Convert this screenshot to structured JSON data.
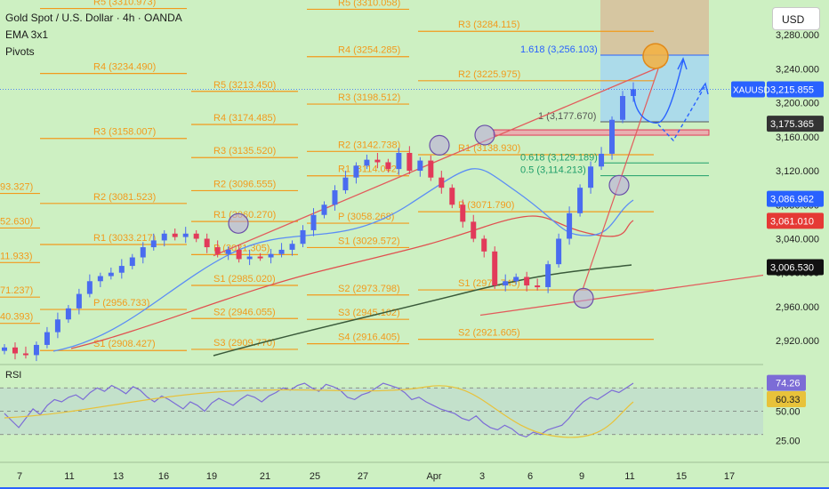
{
  "header": {
    "title": "Gold Spot / U.S. Dollar · 4h · OANDA",
    "indicator_ema": "EMA 3x1",
    "indicator_pivots": "Pivots",
    "rsi_label": "RSI",
    "currency_button": "USD"
  },
  "colors": {
    "background": "#cdf0c2",
    "pivot": "#f29a1c",
    "bull": "#4a6cf0",
    "bear": "#e23a5a",
    "ema_blue": "#5b8df5",
    "ma_red": "#e0504f",
    "ma_dark": "#3a5a3a",
    "rsi_line": "#7c6cd6",
    "rsi_ma": "#e8c23a",
    "trend": "#e25c5c"
  },
  "chart_data": [
    {
      "type": "candlestick",
      "symbol": "XAUUSD",
      "timeframe": "4h",
      "x_ticks": [
        "7",
        "11",
        "13",
        "16",
        "19",
        "21",
        "25",
        "27",
        "Apr",
        "3",
        "6",
        "9",
        "11",
        "15",
        "17"
      ],
      "y_ticks": [
        3280,
        3240,
        3200,
        3160,
        3120,
        3080,
        3040,
        3000,
        2960,
        2920
      ],
      "y_tick_labels": [
        "3,280.000",
        "3,240.000",
        "3,200.000",
        "3,160.000",
        "3,120.000",
        "3,080.000",
        "3,040.000",
        "3,000.000",
        "2,960.000",
        "2,920.000"
      ],
      "ylim": [
        2894,
        3321
      ],
      "close_path": [
        2912,
        2905,
        2903,
        2915,
        2930,
        2945,
        2958,
        2975,
        2990,
        2996,
        3000,
        3008,
        3018,
        3030,
        3038,
        3046,
        3042,
        3046,
        3040,
        3030,
        3022,
        3027,
        3016,
        3019,
        3018,
        3022,
        3027,
        3034,
        3050,
        3068,
        3080,
        3097,
        3112,
        3126,
        3133,
        3130,
        3122,
        3141,
        3120,
        3132,
        3112,
        3100,
        3080,
        3060,
        3040,
        3025,
        2985,
        2990,
        2995,
        2985,
        2983,
        3010,
        3040,
        3070,
        3100,
        3125,
        3140,
        3180,
        3208,
        3216
      ],
      "price_labels": [
        {
          "label": "XAUUSD",
          "value": "3,215.855",
          "y": 3215.855,
          "color": "#2962ff"
        },
        {
          "value": "3,175.365",
          "y": 3175.365,
          "color": "#333333"
        },
        {
          "value": "3,086.962",
          "y": 3086.962,
          "color": "#2962ff"
        },
        {
          "value": "3,061.010",
          "y": 3061.01,
          "color": "#e53935"
        },
        {
          "value": "3,006.530",
          "y": 3006.53,
          "color": "#111111"
        }
      ],
      "pivot_labels": [
        {
          "text": "R5 (3310.973)",
          "y": 3310.973
        },
        {
          "text": "R4 (3234.490)",
          "y": 3234.49
        },
        {
          "text": "R3 (3158.007)",
          "y": 3158.007
        },
        {
          "text": "R2 (3081.523)",
          "y": 3081.523
        },
        {
          "text": "R1 (3033.217)",
          "y": 3033.217
        },
        {
          "text": "P (2956.733)",
          "y": 2956.733
        },
        {
          "text": "S1 (2908.427)",
          "y": 2908.427
        },
        {
          "text": "R5 (3213.450)",
          "y": 3213.45
        },
        {
          "text": "R4 (3174.485)",
          "y": 3174.485
        },
        {
          "text": "R3 (3135.520)",
          "y": 3135.52
        },
        {
          "text": "R2 (3096.555)",
          "y": 3096.555
        },
        {
          "text": "R1 (3060.270)",
          "y": 3060.27
        },
        {
          "text": "P (3021.305)",
          "y": 3021.305
        },
        {
          "text": "S1 (2985.020)",
          "y": 2985.02
        },
        {
          "text": "S2 (2946.055)",
          "y": 2946.055
        },
        {
          "text": "S3 (2909.770)",
          "y": 2909.77
        },
        {
          "text": "R5 (3310.058)",
          "y": 3310.058
        },
        {
          "text": "R4 (3254.285)",
          "y": 3254.285
        },
        {
          "text": "R3 (3198.512)",
          "y": 3198.512
        },
        {
          "text": "R2 (3142.738)",
          "y": 3142.738
        },
        {
          "text": "R1 (3114.042)",
          "y": 3114.042
        },
        {
          "text": "P (3058.268)",
          "y": 3058.268
        },
        {
          "text": "S1 (3029.572)",
          "y": 3029.572
        },
        {
          "text": "S2 (2973.798)",
          "y": 2973.798
        },
        {
          "text": "S3 (2945.102)",
          "y": 2945.102
        },
        {
          "text": "S4 (2916.405)",
          "y": 2916.405
        },
        {
          "text": "R3 (3284.115)",
          "y": 3284.115
        },
        {
          "text": "R2 (3225.975)",
          "y": 3225.975
        },
        {
          "text": "R1 (3138.930)",
          "y": 3138.93
        },
        {
          "text": "P (3071.790)",
          "y": 3071.79
        },
        {
          "text": "S1 (2979.745)",
          "y": 2979.745
        },
        {
          "text": "S2 (2921.605)",
          "y": 2921.605
        },
        {
          "text": "93.327)",
          "y": 3093.327
        },
        {
          "text": "52.630)",
          "y": 3052.63
        },
        {
          "text": "11.933)",
          "y": 3011.933
        },
        {
          "text": "71.237)",
          "y": 2971.237
        },
        {
          "text": "40.393)",
          "y": 2940.393
        }
      ],
      "fib_labels": [
        {
          "text": "1.618 (3,256.103)",
          "y": 3256.103
        },
        {
          "text": "1 (3,177.670)",
          "y": 3177.67
        },
        {
          "text": "0.618 (3,129.189)",
          "y": 3129.189
        },
        {
          "text": "0.5 (3,114.213)",
          "y": 3114.213
        }
      ]
    },
    {
      "type": "line",
      "title": "RSI",
      "y_ticks": [
        74.26,
        60.33,
        50,
        25
      ],
      "y_tick_labels": [
        "74.26",
        "60.33",
        "50.00",
        "25.00"
      ],
      "bands": [
        30,
        50,
        70
      ]
    }
  ]
}
